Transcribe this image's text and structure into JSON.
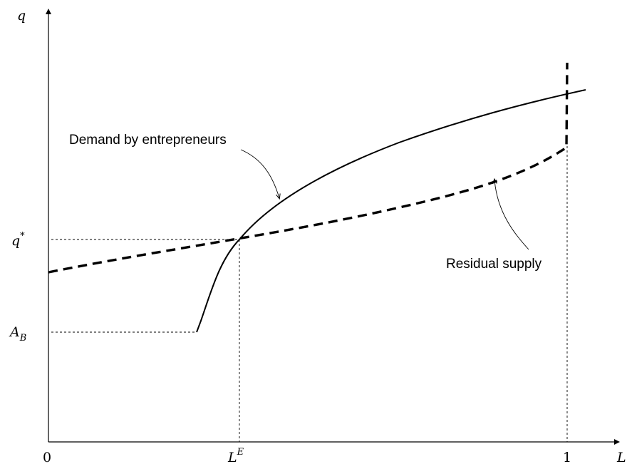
{
  "axes": {
    "y_label": "q",
    "x_label": "L",
    "origin_label": "0",
    "x_end_label": "1"
  },
  "ticks": {
    "q_star": {
      "base": "q",
      "sup": "*"
    },
    "a_b": {
      "base": "A",
      "sub": "B"
    },
    "l_e": {
      "base": "L",
      "sup": "E"
    }
  },
  "curves": {
    "demand": {
      "label": "Demand by entrepreneurs",
      "style": "solid"
    },
    "supply": {
      "label": "Residual supply",
      "style": "dashed"
    }
  }
}
